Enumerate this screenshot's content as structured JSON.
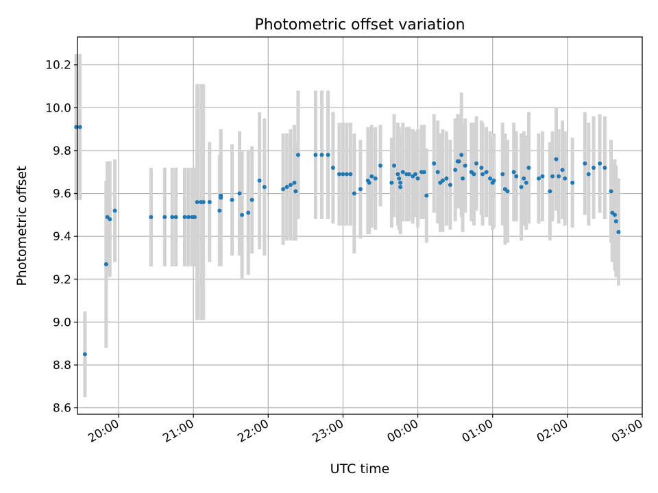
{
  "chart_data": {
    "type": "scatter",
    "title": "Photometric offset variation",
    "xlabel": "UTC time",
    "ylabel": "Photometric offset",
    "x_ticks": [
      "20:00",
      "21:00",
      "22:00",
      "23:00",
      "00:00",
      "01:00",
      "02:00",
      "03:00"
    ],
    "y_ticks": [
      "8.6",
      "8.8",
      "9.0",
      "9.2",
      "9.4",
      "9.6",
      "9.8",
      "10.0",
      "10.2"
    ],
    "xlim": [
      "19:27",
      "03:00"
    ],
    "ylim": [
      8.57,
      10.33
    ],
    "grid": true,
    "error_bars": true,
    "colors": {
      "marker": "#1f77b4",
      "error_bar": "#d3d3d3",
      "grid": "#b0b0b0"
    },
    "series": [
      {
        "points": [
          [
            "19:26",
            9.91,
            0.34
          ],
          [
            "19:29",
            9.91,
            0.34
          ],
          [
            "19:33",
            8.85,
            0.2
          ],
          [
            "19:50",
            9.27,
            0.39
          ],
          [
            "19:51",
            9.49,
            0.26
          ],
          [
            "19:53",
            9.48,
            0.27
          ],
          [
            "19:57",
            9.52,
            0.24
          ],
          [
            "20:26",
            9.49,
            0.23
          ],
          [
            "20:37",
            9.49,
            0.23
          ],
          [
            "20:43",
            9.49,
            0.23
          ],
          [
            "20:46",
            9.49,
            0.23
          ],
          [
            "20:53",
            9.49,
            0.23
          ],
          [
            "20:56",
            9.49,
            0.23
          ],
          [
            "20:59",
            9.49,
            0.23
          ],
          [
            "21:01",
            9.49,
            0.23
          ],
          [
            "21:03",
            9.56,
            0.55
          ],
          [
            "21:06",
            9.56,
            0.55
          ],
          [
            "21:08",
            9.56,
            0.55
          ],
          [
            "21:13",
            9.56,
            0.28
          ],
          [
            "21:21",
            9.52,
            0.26
          ],
          [
            "21:22",
            9.58,
            0.32
          ],
          [
            "21:22",
            9.59,
            0.31
          ],
          [
            "21:31",
            9.57,
            0.26
          ],
          [
            "21:37",
            9.6,
            0.29
          ],
          [
            "21:39",
            9.5,
            0.3
          ],
          [
            "21:44",
            9.51,
            0.29
          ],
          [
            "21:47",
            9.57,
            0.25
          ],
          [
            "21:53",
            9.66,
            0.32
          ],
          [
            "21:57",
            9.63,
            0.32
          ],
          [
            "22:12",
            9.62,
            0.26
          ],
          [
            "22:15",
            9.63,
            0.25
          ],
          [
            "22:18",
            9.64,
            0.26
          ],
          [
            "22:21",
            9.65,
            0.27
          ],
          [
            "22:22",
            9.61,
            0.23
          ],
          [
            "22:24",
            9.78,
            0.3
          ],
          [
            "22:38",
            9.78,
            0.3
          ],
          [
            "22:43",
            9.78,
            0.3
          ],
          [
            "22:48",
            9.78,
            0.3
          ],
          [
            "22:52",
            9.72,
            0.26
          ],
          [
            "22:57",
            9.69,
            0.24
          ],
          [
            "23:00",
            9.69,
            0.24
          ],
          [
            "23:03",
            9.69,
            0.24
          ],
          [
            "23:06",
            9.69,
            0.24
          ],
          [
            "23:09",
            9.6,
            0.28
          ],
          [
            "23:14",
            9.62,
            0.23
          ],
          [
            "23:20",
            9.66,
            0.25
          ],
          [
            "23:21",
            9.65,
            0.24
          ],
          [
            "23:23",
            9.68,
            0.24
          ],
          [
            "23:26",
            9.67,
            0.24
          ],
          [
            "23:30",
            9.73,
            0.19
          ],
          [
            "23:39",
            9.65,
            0.21
          ],
          [
            "23:41",
            9.73,
            0.24
          ],
          [
            "23:44",
            9.69,
            0.24
          ],
          [
            "23:45",
            9.67,
            0.24
          ],
          [
            "23:46",
            9.65,
            0.22
          ],
          [
            "23:46",
            9.63,
            0.22
          ],
          [
            "23:48",
            9.7,
            0.23
          ],
          [
            "23:51",
            9.69,
            0.22
          ],
          [
            "23:53",
            9.69,
            0.22
          ],
          [
            "23:56",
            9.68,
            0.22
          ],
          [
            "23:58",
            9.69,
            0.2
          ],
          [
            "00:00",
            9.67,
            0.23
          ],
          [
            "00:03",
            9.7,
            0.22
          ],
          [
            "00:05",
            9.7,
            0.22
          ],
          [
            "00:07",
            9.59,
            0.22
          ],
          [
            "00:13",
            9.74,
            0.23
          ],
          [
            "00:16",
            9.7,
            0.24
          ],
          [
            "00:18",
            9.65,
            0.23
          ],
          [
            "00:20",
            9.66,
            0.24
          ],
          [
            "00:23",
            9.67,
            0.22
          ],
          [
            "00:26",
            9.64,
            0.21
          ],
          [
            "00:30",
            9.71,
            0.24
          ],
          [
            "00:32",
            9.75,
            0.22
          ],
          [
            "00:33",
            9.75,
            0.22
          ],
          [
            "00:35",
            9.78,
            0.29
          ],
          [
            "00:36",
            9.67,
            0.25
          ],
          [
            "00:38",
            9.73,
            0.22
          ],
          [
            "00:43",
            9.7,
            0.23
          ],
          [
            "00:45",
            9.69,
            0.24
          ],
          [
            "00:47",
            9.74,
            0.22
          ],
          [
            "00:51",
            9.72,
            0.22
          ],
          [
            "00:52",
            9.69,
            0.24
          ],
          [
            "00:55",
            9.7,
            0.21
          ],
          [
            "00:58",
            9.67,
            0.22
          ],
          [
            "01:00",
            9.65,
            0.22
          ],
          [
            "01:01",
            9.66,
            0.22
          ],
          [
            "01:08",
            9.69,
            0.24
          ],
          [
            "01:10",
            9.62,
            0.26
          ],
          [
            "01:12",
            9.61,
            0.24
          ],
          [
            "01:17",
            9.7,
            0.23
          ],
          [
            "01:19",
            9.68,
            0.21
          ],
          [
            "01:23",
            9.63,
            0.25
          ],
          [
            "01:25",
            9.67,
            0.22
          ],
          [
            "01:27",
            9.65,
            0.22
          ],
          [
            "01:29",
            9.72,
            0.26
          ],
          [
            "01:37",
            9.67,
            0.21
          ],
          [
            "01:40",
            9.68,
            0.21
          ],
          [
            "01:46",
            9.61,
            0.23
          ],
          [
            "01:48",
            9.68,
            0.21
          ],
          [
            "01:51",
            9.76,
            0.24
          ],
          [
            "01:53",
            9.68,
            0.22
          ],
          [
            "01:56",
            9.71,
            0.23
          ],
          [
            "01:58",
            9.67,
            0.22
          ],
          [
            "02:04",
            9.65,
            0.21
          ],
          [
            "02:14",
            9.74,
            0.24
          ],
          [
            "02:17",
            9.69,
            0.24
          ],
          [
            "02:21",
            9.72,
            0.24
          ],
          [
            "02:26",
            9.74,
            0.23
          ],
          [
            "02:30",
            9.72,
            0.24
          ],
          [
            "02:35",
            9.61,
            0.24
          ],
          [
            "02:36",
            9.51,
            0.23
          ],
          [
            "02:38",
            9.5,
            0.26
          ],
          [
            "02:39",
            9.47,
            0.26
          ],
          [
            "02:41",
            9.42,
            0.25
          ]
        ]
      }
    ]
  }
}
